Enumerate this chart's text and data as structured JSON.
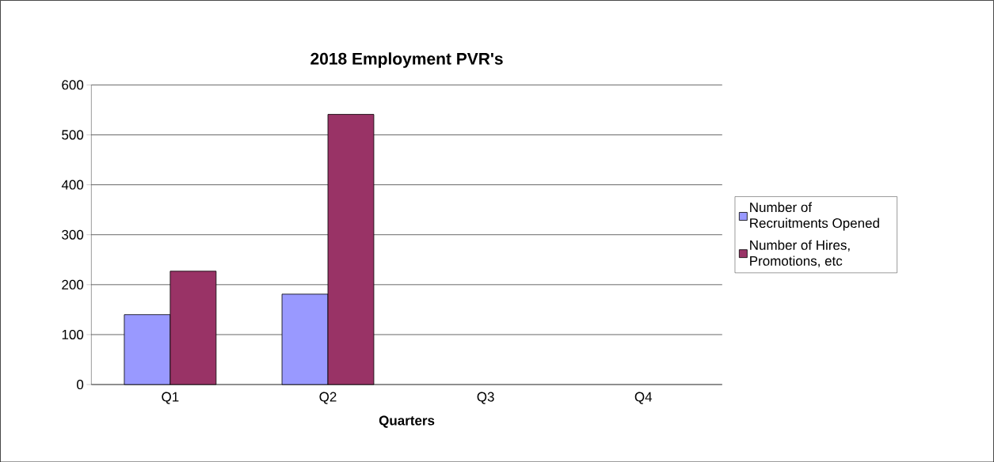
{
  "chart_data": {
    "type": "bar",
    "title": "2018 Employment PVR's",
    "xlabel": "Quarters",
    "categories": [
      "Q1",
      "Q2",
      "Q3",
      "Q4"
    ],
    "series": [
      {
        "name": "Number of Recruitments Opened",
        "color": "#9999ff",
        "values": [
          140,
          181,
          null,
          null
        ]
      },
      {
        "name": "Number of Hires, Promotions, etc",
        "color": "#993366",
        "values": [
          227,
          541,
          null,
          null
        ]
      }
    ],
    "ylim": [
      0,
      600
    ],
    "yticks": [
      0,
      100,
      200,
      300,
      400,
      500,
      600
    ],
    "grid": "y",
    "legend": "right"
  }
}
